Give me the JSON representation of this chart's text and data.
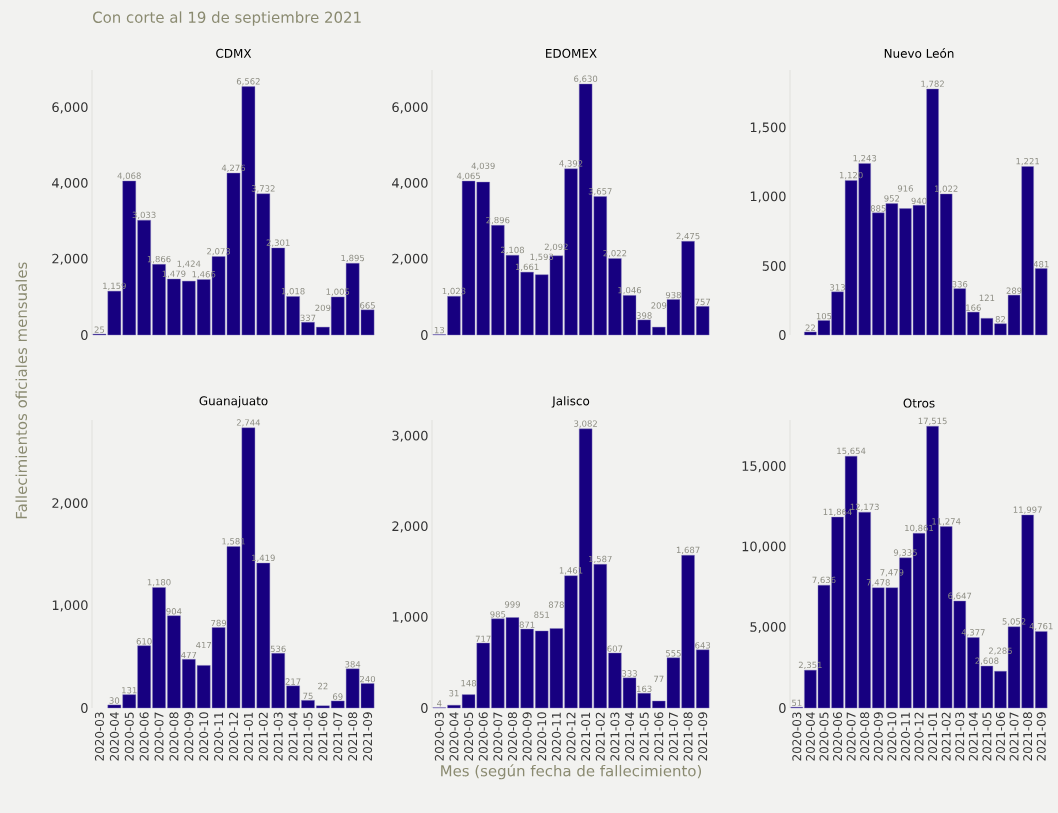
{
  "chart_data": [
    {
      "type": "bar",
      "title": "CDMX",
      "subtitle": "Con corte al 19 de septiembre 2021",
      "ylabel": "Fallecimientos oficiales mensuales",
      "tick_labels": "y",
      "data_labels": true,
      "categories": [
        "2020-03",
        "2020-04",
        "2020-05",
        "2020-06",
        "2020-07",
        "2020-08",
        "2020-09",
        "2020-10",
        "2020-11",
        "2020-12",
        "2021-01",
        "2021-02",
        "2021-03",
        "2021-04",
        "2021-05",
        "2021-06",
        "2021-07",
        "2021-08",
        "2021-09"
      ],
      "series": [
        {
          "color": "#170080",
          "values": [
            25,
            1159,
            4068,
            3033,
            1866,
            1479,
            1424,
            1466,
            2073,
            4276,
            6562,
            3732,
            2301,
            1018,
            337,
            209,
            1005,
            1895,
            665
          ],
          "value_labels": [
            "25",
            "1,159",
            "4,068",
            "3,033",
            "1,866",
            "1,479",
            "1,424",
            "1,466",
            "2,073",
            "4,276",
            "6,562",
            "3,732",
            "2,301",
            "1,018",
            "337",
            "209",
            "1,005",
            "1,895",
            "665"
          ]
        }
      ],
      "ylim": [
        0,
        7000
      ],
      "yticks": [
        0,
        {
          "value": 2000,
          "label": "2,000"
        },
        {
          "value": 4000,
          "label": "4,000"
        },
        {
          "value": 6000,
          "label": "6,000"
        }
      ]
    },
    {
      "type": "bar",
      "title": "EDOMEX",
      "tick_labels": "y",
      "data_labels": true,
      "categories": [
        "2020-03",
        "2020-04",
        "2020-05",
        "2020-06",
        "2020-07",
        "2020-08",
        "2020-09",
        "2020-10",
        "2020-11",
        "2020-12",
        "2021-01",
        "2021-02",
        "2021-03",
        "2021-04",
        "2021-05",
        "2021-06",
        "2021-07",
        "2021-08",
        "2021-09"
      ],
      "series": [
        {
          "color": "#170080",
          "values": [
            13,
            1023,
            4065,
            4039,
            2896,
            2108,
            1661,
            1593,
            2092,
            4392,
            6630,
            3657,
            2022,
            1046,
            398,
            209,
            938,
            2475,
            757
          ],
          "value_labels": [
            "13",
            "1,023",
            "4,065",
            "4,039",
            "2,896",
            "2,108",
            "1,661",
            "1,593",
            "2,092",
            "4,392",
            "6,630",
            "3,657",
            "2,022",
            "1,046",
            "398",
            "209",
            "938",
            "2,475",
            "757"
          ]
        }
      ],
      "ylim": [
        0,
        7000
      ],
      "yticks": [
        0,
        {
          "value": 2000,
          "label": "2,000"
        },
        {
          "value": 4000,
          "label": "4,000"
        },
        {
          "value": 6000,
          "label": "6,000"
        }
      ]
    },
    {
      "type": "bar",
      "title": "Nuevo León",
      "tick_labels": "y",
      "data_labels": true,
      "categories": [
        "2020-03",
        "2020-04",
        "2020-05",
        "2020-06",
        "2020-07",
        "2020-08",
        "2020-09",
        "2020-10",
        "2020-11",
        "2020-12",
        "2021-01",
        "2021-02",
        "2021-03",
        "2021-04",
        "2021-05",
        "2021-06",
        "2021-07",
        "2021-08",
        "2021-09"
      ],
      "series": [
        {
          "color": "#170080",
          "values": [
            null,
            22,
            105,
            313,
            1120,
            1243,
            885,
            952,
            916,
            940,
            1782,
            1022,
            336,
            166,
            121,
            82,
            289,
            1221,
            481
          ],
          "value_labels": [
            null,
            "22",
            "105",
            "313",
            "1,120",
            "1,243",
            "885",
            "952",
            "916",
            "940",
            "1,782",
            "1,022",
            "336",
            "166",
            "121",
            "82",
            "289",
            "1,221",
            "481"
          ]
        }
      ],
      "ylim": [
        0,
        1920
      ],
      "yticks": [
        0,
        500,
        {
          "value": 1000,
          "label": "1,000"
        },
        {
          "value": 1500,
          "label": "1,500"
        }
      ]
    },
    {
      "type": "bar",
      "title": "Guanajuato",
      "data_labels": true,
      "categories": [
        "2020-03",
        "2020-04",
        "2020-05",
        "2020-06",
        "2020-07",
        "2020-08",
        "2020-09",
        "2020-10",
        "2020-11",
        "2020-12",
        "2021-01",
        "2021-02",
        "2021-03",
        "2021-04",
        "2021-05",
        "2021-06",
        "2021-07",
        "2021-08",
        "2021-09"
      ],
      "series": [
        {
          "color": "#170080",
          "values": [
            null,
            30,
            131,
            610,
            1180,
            904,
            477,
            417,
            789,
            1581,
            2744,
            1419,
            536,
            217,
            75,
            22,
            69,
            384,
            240
          ],
          "value_labels": [
            null,
            "30",
            "131",
            "610",
            "1,180",
            "904",
            "477",
            "417",
            "789",
            "1,581",
            "2,744",
            "1,419",
            "536",
            "217",
            "75",
            "22",
            "69",
            "384",
            "240"
          ]
        }
      ],
      "ylim": [
        0,
        2820
      ],
      "yticks": [
        0,
        {
          "value": 1000,
          "label": "1,000"
        },
        {
          "value": 2000,
          "label": "2,000"
        }
      ]
    },
    {
      "type": "bar",
      "title": "Jalisco",
      "xlabel": "Mes (según fecha de fallecimiento)",
      "data_labels": true,
      "categories": [
        "2020-03",
        "2020-04",
        "2020-05",
        "2020-06",
        "2020-07",
        "2020-08",
        "2020-09",
        "2020-10",
        "2020-11",
        "2020-12",
        "2021-01",
        "2021-02",
        "2021-03",
        "2021-04",
        "2021-05",
        "2021-06",
        "2021-07",
        "2021-08",
        "2021-09"
      ],
      "series": [
        {
          "color": "#170080",
          "values": [
            4,
            31,
            148,
            717,
            985,
            999,
            871,
            851,
            878,
            1461,
            3082,
            1587,
            607,
            333,
            163,
            77,
            555,
            1687,
            643
          ],
          "value_labels": [
            "4",
            "31",
            "148",
            "717",
            "985",
            "999",
            "871",
            "851",
            "878",
            "1,461",
            "3,082",
            "1,587",
            "607",
            "333",
            "163",
            "77",
            "555",
            "1,687",
            "643"
          ]
        }
      ],
      "ylim": [
        0,
        3180
      ],
      "yticks": [
        0,
        {
          "value": 1000,
          "label": "1,000"
        },
        {
          "value": 2000,
          "label": "2,000"
        },
        {
          "value": 3000,
          "label": "3,000"
        }
      ]
    },
    {
      "type": "bar",
      "title": "Otros",
      "data_labels": true,
      "categories": [
        "2020-03",
        "2020-04",
        "2020-05",
        "2020-06",
        "2020-07",
        "2020-08",
        "2020-09",
        "2020-10",
        "2020-11",
        "2020-12",
        "2021-01",
        "2021-02",
        "2021-03",
        "2021-04",
        "2021-05",
        "2021-06",
        "2021-07",
        "2021-08",
        "2021-09"
      ],
      "series": [
        {
          "color": "#170080",
          "values": [
            51,
            2351,
            7636,
            11864,
            15654,
            12173,
            7478,
            7479,
            9335,
            10861,
            17515,
            11274,
            6647,
            4377,
            2608,
            2285,
            5052,
            11997,
            4761
          ],
          "value_labels": [
            "51",
            "2,351",
            "7,636",
            "11,864",
            "15,654",
            "12,173",
            "7,478",
            "7,479",
            "9,335",
            "10,861",
            "17,515",
            "11,274",
            "6,647",
            "4,377",
            "2,608",
            "2,285",
            "5,052",
            "11,997",
            "4,761"
          ]
        }
      ],
      "ylim": [
        0,
        17900
      ],
      "yticks": [
        0,
        {
          "value": 5000,
          "label": "5,000"
        },
        {
          "value": 10000,
          "label": "10,000"
        },
        {
          "value": 15000,
          "label": "15,000"
        }
      ]
    }
  ]
}
